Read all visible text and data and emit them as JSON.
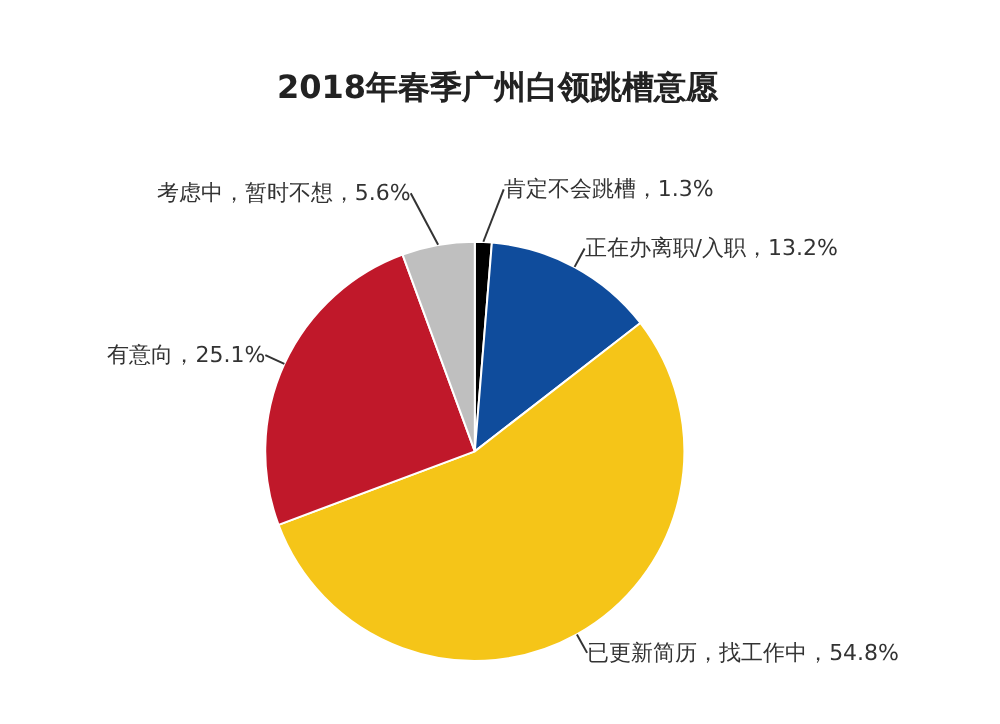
{
  "chart_data": {
    "type": "pie",
    "title": "2018年春季广州白领跳槽意愿",
    "categories": [
      "肯定不会跳槽",
      "正在办离职/入职",
      "已更新简历，找工作中",
      "有意向",
      "考虑中，暂时不想"
    ],
    "values": [
      1.3,
      13.2,
      54.8,
      25.1,
      5.6
    ],
    "value_labels": [
      "1.3%",
      "13.2%",
      "54.8%",
      "25.1%",
      "5.6%"
    ],
    "colors": [
      "#000000",
      "#0f4c9c",
      "#f5c518",
      "#c0182a",
      "#bfbfbf"
    ]
  }
}
